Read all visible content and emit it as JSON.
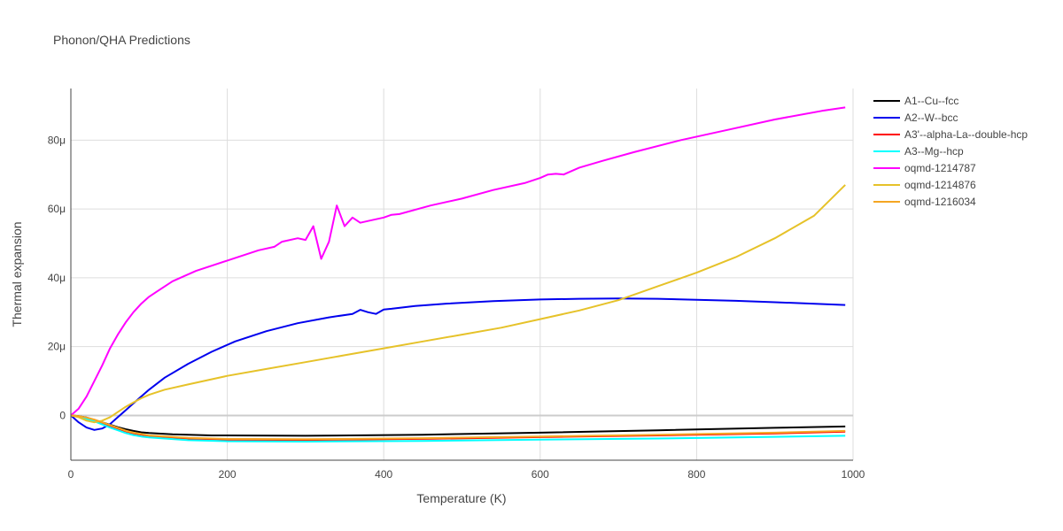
{
  "chart_data": {
    "type": "line",
    "title": "Phonon/QHA Predictions",
    "xlabel": "Temperature (K)",
    "ylabel": "Thermal expansion",
    "xlim": [
      0,
      1000
    ],
    "ylim": [
      -13,
      95
    ],
    "y_unit_suffix": "μ",
    "x_ticks": [
      0,
      200,
      400,
      600,
      800,
      1000
    ],
    "x_tick_labels": [
      "0",
      "200",
      "400",
      "600",
      "800",
      "1000"
    ],
    "y_ticks": [
      0,
      20,
      40,
      60,
      80
    ],
    "y_tick_labels": [
      "0",
      "20μ",
      "40μ",
      "60μ",
      "80μ"
    ],
    "grid": true,
    "legend_position": "right",
    "series": [
      {
        "name": "A1--Cu--fcc",
        "color": "#000000",
        "x": [
          0,
          10,
          20,
          30,
          40,
          50,
          60,
          70,
          80,
          90,
          100,
          130,
          180,
          300,
          450,
          600,
          750,
          900,
          990
        ],
        "y": [
          0,
          -0.2,
          -0.6,
          -1.3,
          -2.0,
          -2.7,
          -3.4,
          -4.0,
          -4.5,
          -4.9,
          -5.1,
          -5.5,
          -5.8,
          -5.9,
          -5.6,
          -5.0,
          -4.3,
          -3.6,
          -3.2
        ]
      },
      {
        "name": "A2--W--bcc",
        "color": "#0000ee",
        "x": [
          0,
          10,
          20,
          30,
          40,
          50,
          60,
          70,
          80,
          100,
          120,
          150,
          180,
          210,
          250,
          290,
          330,
          360,
          370,
          380,
          390,
          400,
          410,
          440,
          480,
          540,
          600,
          650,
          700,
          750,
          800,
          850,
          900,
          990
        ],
        "y": [
          0,
          -2.0,
          -3.5,
          -4.2,
          -3.8,
          -2.5,
          -0.5,
          1.5,
          3.5,
          7.5,
          11.0,
          15.0,
          18.5,
          21.5,
          24.5,
          26.8,
          28.5,
          29.5,
          30.7,
          30.0,
          29.5,
          30.8,
          31.0,
          31.8,
          32.5,
          33.2,
          33.7,
          33.9,
          34.0,
          33.9,
          33.6,
          33.3,
          32.9,
          32.1
        ]
      },
      {
        "name": "A3'--alpha-La--double-hcp",
        "color": "#ff0000",
        "x": [
          0,
          10,
          20,
          30,
          40,
          50,
          60,
          70,
          80,
          90,
          100,
          150,
          200,
          300,
          450,
          600,
          750,
          900,
          990
        ],
        "y": [
          0,
          -0.3,
          -0.8,
          -1.4,
          -2.2,
          -3.0,
          -3.8,
          -4.6,
          -5.2,
          -5.6,
          -6.0,
          -6.7,
          -7.0,
          -7.1,
          -6.8,
          -6.3,
          -5.8,
          -5.2,
          -4.7
        ]
      },
      {
        "name": "A3--Mg--hcp",
        "color": "#00ffff",
        "x": [
          0,
          10,
          20,
          30,
          40,
          50,
          60,
          70,
          80,
          90,
          100,
          150,
          200,
          300,
          450,
          600,
          750,
          900,
          990
        ],
        "y": [
          0,
          -0.4,
          -1.0,
          -1.7,
          -2.6,
          -3.5,
          -4.3,
          -5.1,
          -5.7,
          -6.1,
          -6.4,
          -7.2,
          -7.5,
          -7.6,
          -7.4,
          -7.0,
          -6.7,
          -6.2,
          -5.9
        ]
      },
      {
        "name": "oqmd-1214787",
        "color": "#ff00ff",
        "x": [
          0,
          10,
          20,
          30,
          40,
          50,
          60,
          70,
          80,
          90,
          100,
          110,
          130,
          160,
          200,
          240,
          260,
          270,
          290,
          300,
          310,
          320,
          330,
          340,
          350,
          360,
          370,
          380,
          400,
          410,
          420,
          460,
          500,
          540,
          580,
          600,
          610,
          620,
          630,
          640,
          650,
          680,
          720,
          780,
          840,
          900,
          960,
          990
        ],
        "y": [
          0,
          2.0,
          5.5,
          10.0,
          14.5,
          19.5,
          23.5,
          27.0,
          30.0,
          32.5,
          34.5,
          36.0,
          39.0,
          42.0,
          45.0,
          48.0,
          49.0,
          50.5,
          51.5,
          51.0,
          55.0,
          45.5,
          50.5,
          61.0,
          55.0,
          57.5,
          56.0,
          56.5,
          57.5,
          58.3,
          58.5,
          61.0,
          63.0,
          65.5,
          67.5,
          69.0,
          70.0,
          70.2,
          70.0,
          71.0,
          72.0,
          74.0,
          76.5,
          80.0,
          83.0,
          86.0,
          88.5,
          89.5
        ]
      },
      {
        "name": "oqmd-1214876",
        "color": "#e6c229",
        "x": [
          0,
          10,
          20,
          30,
          40,
          50,
          60,
          70,
          80,
          90,
          100,
          120,
          150,
          200,
          250,
          300,
          350,
          400,
          450,
          500,
          550,
          600,
          650,
          700,
          750,
          800,
          850,
          900,
          950,
          990
        ],
        "y": [
          0,
          -0.5,
          -1.5,
          -2.0,
          -1.5,
          -0.5,
          1.0,
          2.5,
          3.8,
          5.0,
          6.0,
          7.5,
          9.0,
          11.5,
          13.5,
          15.5,
          17.5,
          19.5,
          21.5,
          23.5,
          25.5,
          28.0,
          30.5,
          33.5,
          37.5,
          41.5,
          46.0,
          51.5,
          58.0,
          67.0
        ]
      },
      {
        "name": "oqmd-1216034",
        "color": "#f5a623",
        "x": [
          0,
          10,
          20,
          30,
          40,
          50,
          60,
          70,
          80,
          90,
          100,
          150,
          200,
          300,
          450,
          600,
          750,
          900,
          990
        ],
        "y": [
          0,
          -0.2,
          -0.6,
          -1.2,
          -2.0,
          -2.8,
          -3.6,
          -4.4,
          -5.0,
          -5.4,
          -5.8,
          -6.5,
          -6.8,
          -6.9,
          -6.6,
          -6.1,
          -5.6,
          -5.0,
          -4.5
        ]
      }
    ]
  }
}
